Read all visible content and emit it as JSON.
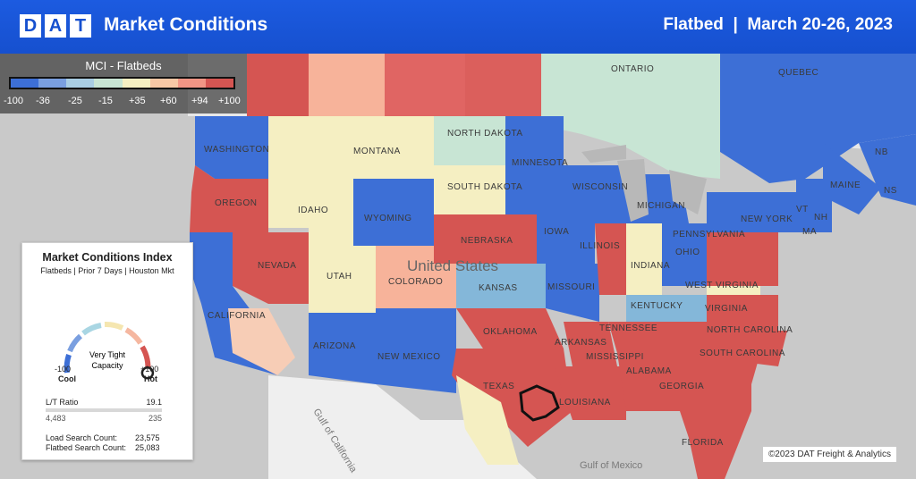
{
  "header": {
    "logo": [
      "D",
      "A",
      "T"
    ],
    "title": "Market Conditions",
    "subtitle": "Flatbed  |  March 20-26, 2023"
  },
  "legend": {
    "title": "MCI - Flatbeds",
    "ticks": [
      "-100",
      "-36",
      "-25",
      "-15",
      "+35",
      "+60",
      "+94",
      "+100"
    ],
    "colors": [
      "#3d6fd6",
      "#7a9fe0",
      "#a9cde3",
      "#c8e5d4",
      "#f5efc2",
      "#f7c7a5",
      "#f19585",
      "#d55552"
    ]
  },
  "index_card": {
    "title": "Market Conditions Index",
    "subtitle": "Flatbeds | Prior 7 Days | Houston Mkt",
    "gauge_label_1": "Very Tight",
    "gauge_label_2": "Capacity",
    "gauge_value": 0.98,
    "min_value": "-100",
    "min_label": "Cool",
    "max_value": "+100",
    "max_label": "Hot",
    "lt_label": "L/T Ratio",
    "lt_value": "19.1",
    "loads": "4,483",
    "trucks": "235",
    "load_search_label": "Load Search Count:",
    "load_search_value": "23,575",
    "flatbed_search_label": "Flatbed Search Count:",
    "flatbed_search_value": "25,083"
  },
  "map": {
    "country_label": "United States",
    "state_labels": [
      "WASHINGTON",
      "OREGON",
      "CALIFORNIA",
      "NEVADA",
      "IDAHO",
      "MONTANA",
      "WYOMING",
      "UTAH",
      "ARIZONA",
      "COLORADO",
      "NEW MEXICO",
      "NORTH DAKOTA",
      "SOUTH DAKOTA",
      "NEBRASKA",
      "KANSAS",
      "OKLAHOMA",
      "TEXAS",
      "MINNESOTA",
      "IOWA",
      "MISSOURI",
      "ARKANSAS",
      "LOUISIANA",
      "WISCONSIN",
      "ILLINOIS",
      "INDIANA",
      "OHIO",
      "KENTUCKY",
      "TENNESSEE",
      "MISSISSIPPI",
      "ALABAMA",
      "GEORGIA",
      "FLORIDA",
      "SOUTH CAROLINA",
      "NORTH CAROLINA",
      "VIRGINIA",
      "WEST VIRGINIA",
      "PENNSYLVANIA",
      "NEW YORK",
      "MAINE",
      "VT",
      "MA",
      "NH",
      "NB",
      "NS",
      "ONTARIO",
      "QUEBEC",
      "MICHIGAN"
    ],
    "water_labels": [
      "Gulf of California",
      "Gulf of Mexico"
    ]
  },
  "copyright": "©2023 DAT Freight & Analytics"
}
